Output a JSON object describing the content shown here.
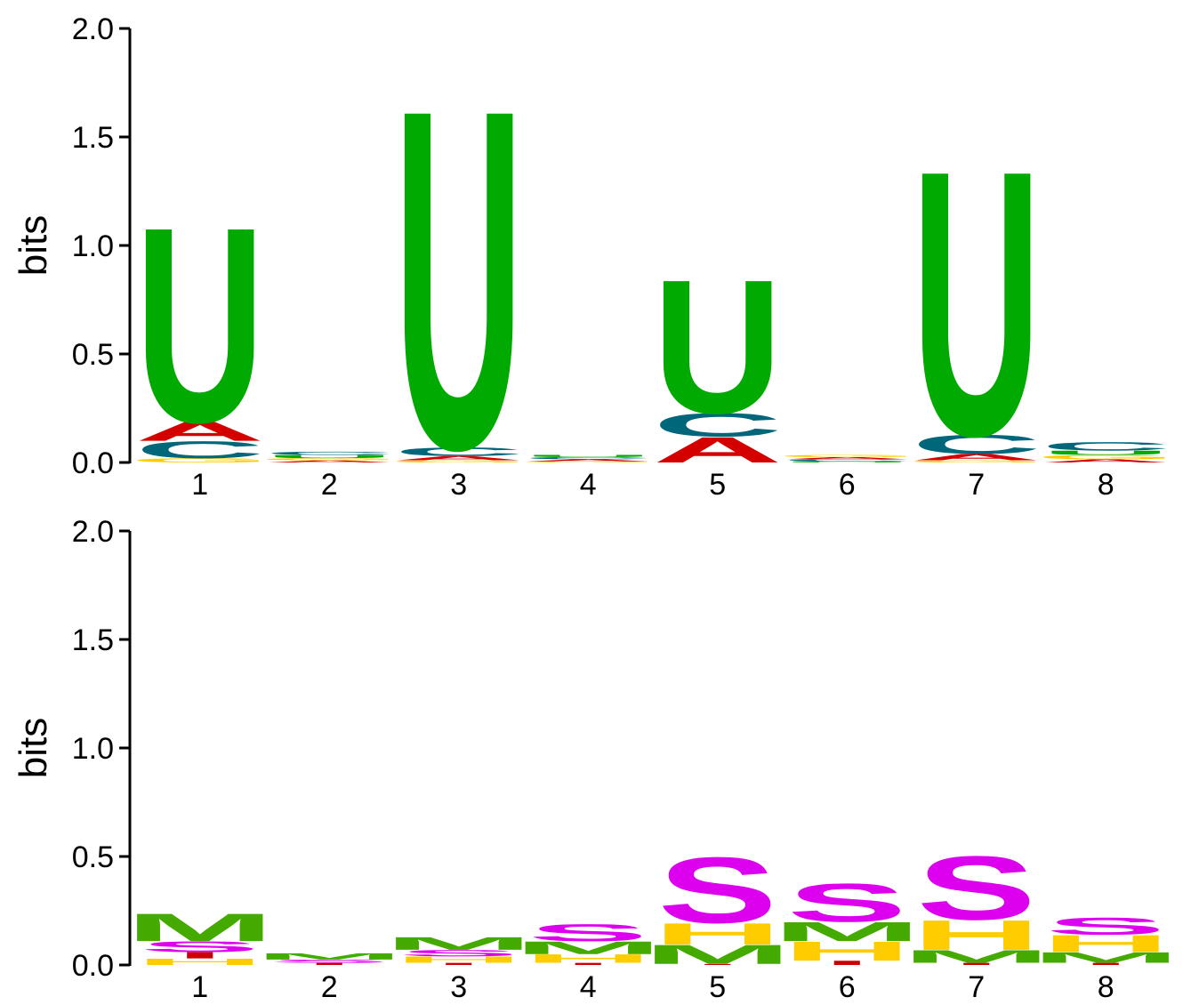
{
  "colors": {
    "A": "#d40000",
    "C": "#00667a",
    "G": "#ffcc00",
    "U": "#00aa00",
    "S": "#dd00ee",
    "H": "#ffcc00",
    "M": "#44aa00",
    "I": "#cc0000",
    "axis": "#000000"
  },
  "chart_data": [
    {
      "type": "sequence-logo",
      "ylabel": "bits",
      "ylim": [
        0,
        2.0
      ],
      "yticks": [
        "0.0",
        "0.5",
        "1.0",
        "1.5",
        "2.0"
      ],
      "positions": [
        "1",
        "2",
        "3",
        "4",
        "5",
        "6",
        "7",
        "8"
      ],
      "stacks": [
        [
          {
            "letter": "G",
            "value": 0.02
          },
          {
            "letter": "C",
            "value": 0.08
          },
          {
            "letter": "A",
            "value": 0.09
          },
          {
            "letter": "U",
            "value": 0.92
          }
        ],
        [
          {
            "letter": "A",
            "value": 0.01
          },
          {
            "letter": "G",
            "value": 0.01
          },
          {
            "letter": "U",
            "value": 0.015
          },
          {
            "letter": "C",
            "value": 0.015
          }
        ],
        [
          {
            "letter": "G",
            "value": 0.01
          },
          {
            "letter": "A",
            "value": 0.02
          },
          {
            "letter": "C",
            "value": 0.04
          },
          {
            "letter": "U",
            "value": 1.6
          }
        ],
        [
          {
            "letter": "G",
            "value": 0.005
          },
          {
            "letter": "A",
            "value": 0.01
          },
          {
            "letter": "C",
            "value": 0.01
          },
          {
            "letter": "U",
            "value": 0.01
          }
        ],
        [
          {
            "letter": "A",
            "value": 0.12
          },
          {
            "letter": "C",
            "value": 0.11
          },
          {
            "letter": "U",
            "value": 0.63
          }
        ],
        [
          {
            "letter": "U",
            "value": 0.005
          },
          {
            "letter": "C",
            "value": 0.01
          },
          {
            "letter": "A",
            "value": 0.01
          },
          {
            "letter": "G",
            "value": 0.01
          }
        ],
        [
          {
            "letter": "G",
            "value": 0.01
          },
          {
            "letter": "A",
            "value": 0.03
          },
          {
            "letter": "C",
            "value": 0.09
          },
          {
            "letter": "U",
            "value": 1.25
          }
        ],
        [
          {
            "letter": "A",
            "value": 0.015
          },
          {
            "letter": "G",
            "value": 0.02
          },
          {
            "letter": "U",
            "value": 0.02
          },
          {
            "letter": "C",
            "value": 0.04
          }
        ]
      ]
    },
    {
      "type": "sequence-logo",
      "ylabel": "bits",
      "ylim": [
        0,
        2.0
      ],
      "yticks": [
        "0.0",
        "0.5",
        "1.0",
        "1.5",
        "2.0"
      ],
      "positions": [
        "1",
        "2",
        "3",
        "4",
        "5",
        "6",
        "7",
        "8"
      ],
      "stacks": [
        [
          {
            "letter": "H",
            "value": 0.03
          },
          {
            "letter": "I",
            "value": 0.03
          },
          {
            "letter": "S",
            "value": 0.05
          },
          {
            "letter": "M",
            "value": 0.13
          }
        ],
        [
          {
            "letter": "I",
            "value": 0.01
          },
          {
            "letter": "S",
            "value": 0.015
          },
          {
            "letter": "M",
            "value": 0.03
          }
        ],
        [
          {
            "letter": "I",
            "value": 0.01
          },
          {
            "letter": "H",
            "value": 0.03
          },
          {
            "letter": "S",
            "value": 0.03
          },
          {
            "letter": "M",
            "value": 0.06
          }
        ],
        [
          {
            "letter": "I",
            "value": 0.01
          },
          {
            "letter": "H",
            "value": 0.04
          },
          {
            "letter": "M",
            "value": 0.06
          },
          {
            "letter": "S",
            "value": 0.08
          }
        ],
        [
          {
            "letter": "I",
            "value": 0.005
          },
          {
            "letter": "M",
            "value": 0.09
          },
          {
            "letter": "H",
            "value": 0.1
          },
          {
            "letter": "S",
            "value": 0.31
          }
        ],
        [
          {
            "letter": "I",
            "value": 0.02
          },
          {
            "letter": "H",
            "value": 0.09
          },
          {
            "letter": "M",
            "value": 0.09
          },
          {
            "letter": "S",
            "value": 0.18
          }
        ],
        [
          {
            "letter": "I",
            "value": 0.01
          },
          {
            "letter": "M",
            "value": 0.06
          },
          {
            "letter": "H",
            "value": 0.14
          },
          {
            "letter": "S",
            "value": 0.3
          }
        ],
        [
          {
            "letter": "I",
            "value": 0.01
          },
          {
            "letter": "M",
            "value": 0.05
          },
          {
            "letter": "H",
            "value": 0.08
          },
          {
            "letter": "S",
            "value": 0.08
          }
        ]
      ]
    }
  ]
}
